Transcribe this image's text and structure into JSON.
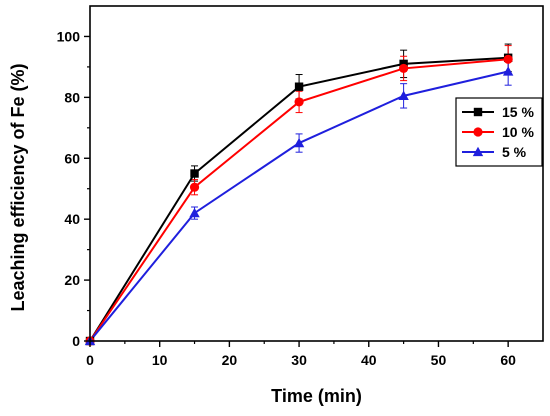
{
  "chart_data": {
    "type": "line",
    "title": "",
    "xlabel": "Time (min)",
    "ylabel": "Leaching efficiency of Fe (%)",
    "xlim": [
      0,
      65
    ],
    "ylim": [
      0,
      110
    ],
    "x_ticks": [
      0,
      10,
      20,
      30,
      40,
      50,
      60
    ],
    "y_ticks": [
      0,
      20,
      40,
      60,
      80,
      100
    ],
    "x": [
      0,
      15,
      30,
      45,
      60
    ],
    "grid": false,
    "legend_position": "right",
    "series": [
      {
        "name": "15 %",
        "color": "#000000",
        "marker": "square",
        "values": [
          0,
          55,
          83.5,
          91,
          93
        ],
        "errors": [
          0,
          2.5,
          4,
          4.5,
          4.5
        ]
      },
      {
        "name": "10 %",
        "color": "#ff0000",
        "marker": "circle",
        "values": [
          0,
          50.5,
          78.5,
          89.5,
          92.5
        ],
        "errors": [
          0,
          2.5,
          3.5,
          4,
          4.5
        ]
      },
      {
        "name": "5 %",
        "color": "#1f1fdd",
        "marker": "triangle",
        "values": [
          0,
          42,
          65,
          80.5,
          88.5
        ],
        "errors": [
          0,
          2,
          3,
          4,
          4.5
        ]
      }
    ]
  }
}
